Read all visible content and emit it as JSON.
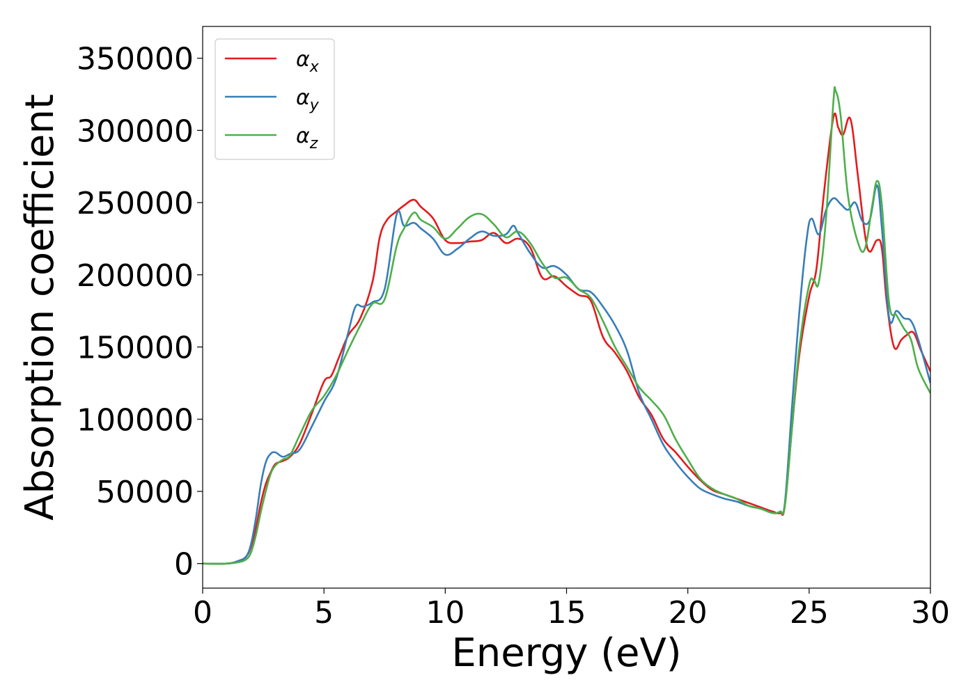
{
  "chart_data": {
    "type": "line",
    "title": "",
    "xlabel": "Energy (eV)",
    "ylabel": "Absorption coefficient",
    "xlim": [
      0,
      30
    ],
    "ylim": [
      -17000,
      372000
    ],
    "xticks": [
      0,
      5,
      10,
      15,
      20,
      25,
      30
    ],
    "xtick_labels": [
      "0",
      "5",
      "10",
      "15",
      "20",
      "25",
      "30"
    ],
    "yticks": [
      0,
      50000,
      100000,
      150000,
      200000,
      250000,
      300000,
      350000
    ],
    "ytick_labels": [
      "0",
      "50000",
      "100000",
      "150000",
      "200000",
      "250000",
      "300000",
      "350000"
    ],
    "grid": false,
    "legend_position": "top-left",
    "series": [
      {
        "name": "α_x",
        "label_base": "α",
        "label_sub": "x",
        "color": "#e41a1c",
        "x": [
          0,
          1,
          1.5,
          1.8,
          2.0,
          2.2,
          2.4,
          2.6,
          2.8,
          3.0,
          3.3,
          3.6,
          4.0,
          4.5,
          5.0,
          5.3,
          5.6,
          6.0,
          6.5,
          7.0,
          7.3,
          7.6,
          8.0,
          8.3,
          8.7,
          9.0,
          9.5,
          10.0,
          10.5,
          11.0,
          11.5,
          12.0,
          12.5,
          13.0,
          13.5,
          14.0,
          14.5,
          15.0,
          15.5,
          16.0,
          16.5,
          17.0,
          17.5,
          18.0,
          18.5,
          19.0,
          19.5,
          20.0,
          20.5,
          21.0,
          21.5,
          22.0,
          22.5,
          23.0,
          23.5,
          23.8,
          24.0,
          24.3,
          24.6,
          25.0,
          25.3,
          25.6,
          26.0,
          26.2,
          26.4,
          26.7,
          27.0,
          27.3,
          27.5,
          27.8,
          28.0,
          28.2,
          28.5,
          28.8,
          29.0,
          29.3,
          29.6,
          30.0
        ],
        "values": [
          0,
          0,
          2000,
          5000,
          12000,
          25000,
          42000,
          55000,
          63000,
          69000,
          71000,
          74000,
          83000,
          104000,
          126000,
          130000,
          142000,
          158000,
          170000,
          195000,
          226000,
          238000,
          244000,
          248000,
          252000,
          247000,
          239000,
          224000,
          222000,
          223000,
          224000,
          229000,
          222000,
          225000,
          219000,
          198000,
          199000,
          192000,
          186000,
          182000,
          157000,
          146000,
          133000,
          115000,
          103000,
          86000,
          77000,
          67000,
          58000,
          51000,
          48000,
          45000,
          42000,
          39000,
          36000,
          35000,
          40000,
          95000,
          145000,
          185000,
          204000,
          255000,
          309000,
          302000,
          297000,
          308000,
          270000,
          228000,
          216000,
          224000,
          218000,
          181000,
          150000,
          155000,
          158000,
          160000,
          148000,
          133000
        ]
      },
      {
        "name": "α_y",
        "label_base": "α",
        "label_sub": "y",
        "color": "#377eb8",
        "x": [
          0,
          1,
          1.5,
          1.8,
          2.0,
          2.2,
          2.4,
          2.6,
          2.8,
          3.0,
          3.3,
          3.6,
          4.0,
          4.5,
          5.0,
          5.5,
          6.0,
          6.3,
          6.6,
          7.0,
          7.5,
          8.0,
          8.3,
          8.7,
          9.0,
          9.5,
          10.0,
          10.5,
          11.0,
          11.5,
          12.0,
          12.5,
          12.8,
          13.0,
          13.5,
          14.0,
          14.5,
          15.0,
          15.5,
          16.0,
          16.5,
          17.0,
          17.5,
          18.0,
          18.5,
          19.0,
          19.5,
          20.0,
          20.5,
          21.0,
          21.5,
          22.0,
          22.5,
          23.0,
          23.5,
          23.8,
          24.0,
          24.3,
          24.6,
          24.9,
          25.1,
          25.4,
          25.7,
          26.0,
          26.3,
          26.6,
          26.9,
          27.2,
          27.5,
          27.8,
          28.0,
          28.3,
          28.6,
          28.9,
          29.2,
          29.5,
          30.0
        ],
        "values": [
          0,
          0,
          2000,
          5000,
          14000,
          32000,
          55000,
          70000,
          76000,
          77000,
          74000,
          76000,
          79000,
          95000,
          112000,
          128000,
          160000,
          178000,
          178000,
          181000,
          190000,
          242000,
          234000,
          236000,
          232000,
          225000,
          214000,
          218000,
          225000,
          230000,
          227000,
          228000,
          234000,
          229000,
          215000,
          205000,
          206000,
          200000,
          190000,
          188000,
          178000,
          165000,
          147000,
          118000,
          100000,
          82000,
          70000,
          60000,
          52000,
          48000,
          45000,
          43000,
          40000,
          38000,
          35000,
          36000,
          42000,
          110000,
          175000,
          225000,
          239000,
          228000,
          245000,
          253000,
          249000,
          245000,
          250000,
          237000,
          238000,
          262000,
          232000,
          170000,
          175000,
          170000,
          168000,
          155000,
          125000
        ]
      },
      {
        "name": "α_z",
        "label_base": "α",
        "label_sub": "z",
        "color": "#4daf4a",
        "x": [
          0,
          1,
          1.5,
          1.8,
          2.0,
          2.2,
          2.4,
          2.6,
          2.8,
          3.0,
          3.3,
          3.6,
          4.0,
          4.5,
          5.0,
          5.5,
          6.0,
          6.5,
          7.0,
          7.5,
          8.0,
          8.3,
          8.7,
          9.0,
          9.5,
          10.0,
          10.5,
          11.0,
          11.5,
          12.0,
          12.5,
          13.0,
          13.5,
          14.0,
          14.5,
          15.0,
          15.5,
          16.0,
          16.5,
          17.0,
          17.5,
          18.0,
          18.5,
          19.0,
          19.5,
          20.0,
          20.5,
          21.0,
          21.5,
          22.0,
          22.5,
          23.0,
          23.5,
          23.8,
          24.0,
          24.3,
          24.6,
          25.0,
          25.2,
          25.4,
          25.7,
          26.0,
          26.1,
          26.3,
          26.6,
          27.0,
          27.3,
          27.6,
          27.8,
          28.0,
          28.3,
          28.6,
          28.9,
          29.2,
          29.5,
          30.0
        ],
        "values": [
          0,
          0,
          1000,
          3000,
          8000,
          20000,
          36000,
          50000,
          62000,
          68000,
          72000,
          75000,
          89000,
          106000,
          116000,
          130000,
          148000,
          165000,
          180000,
          183000,
          220000,
          232000,
          243000,
          238000,
          233000,
          225000,
          232000,
          240000,
          242000,
          235000,
          226000,
          230000,
          222000,
          208000,
          198000,
          198000,
          190000,
          184000,
          168000,
          150000,
          136000,
          122000,
          113000,
          103000,
          86000,
          72000,
          59000,
          52000,
          48000,
          45000,
          40000,
          38000,
          35000,
          36000,
          40000,
          95000,
          150000,
          193000,
          196000,
          195000,
          240000,
          320000,
          327000,
          310000,
          255000,
          223000,
          218000,
          248000,
          265000,
          248000,
          180000,
          172000,
          163000,
          155000,
          135000,
          118000
        ]
      }
    ]
  }
}
